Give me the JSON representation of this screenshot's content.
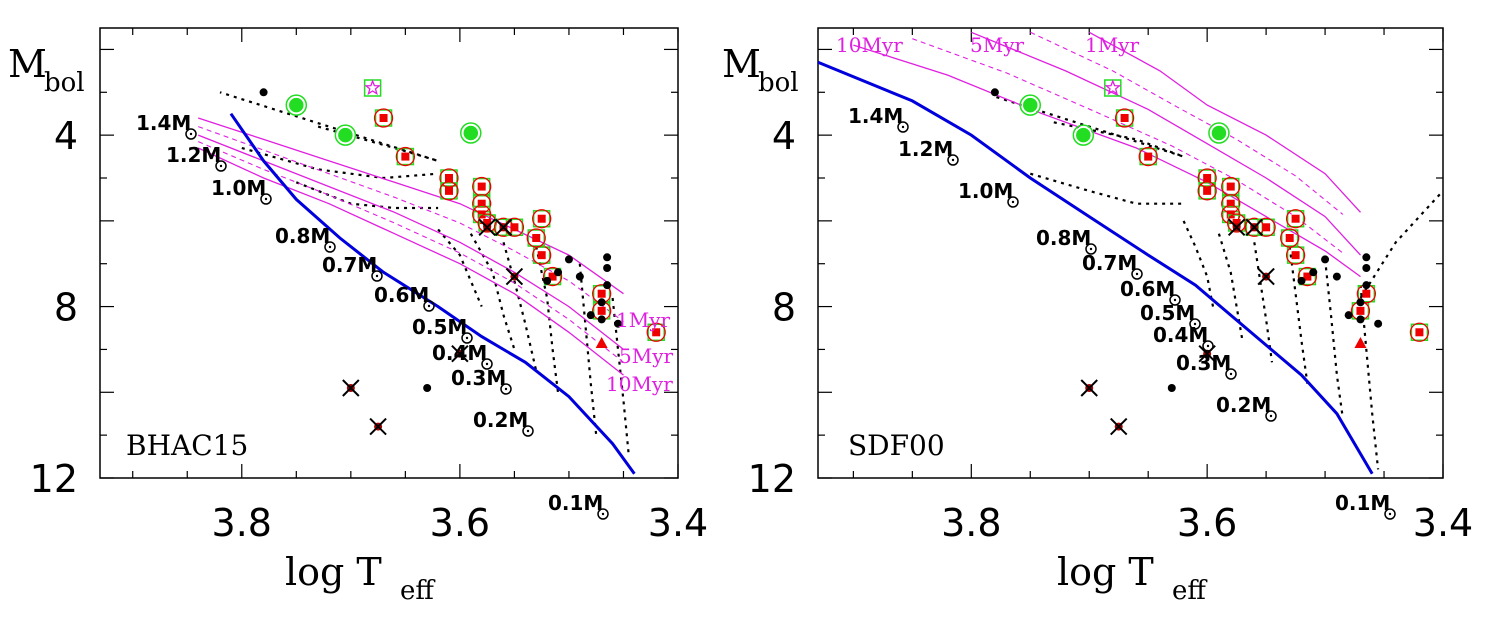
{
  "figure": {
    "panels": [
      {
        "model": "BHAC15",
        "ylabel_main": "M",
        "ylabel_sub": "bol",
        "xlabel_main": "log T",
        "xlabel_sub": "eff",
        "mass_labels": [
          "1.4M",
          "1.2M",
          "1.0M",
          "0.8M",
          "0.7M",
          "0.6M",
          "0.5M",
          "0.4M",
          "0.3M",
          "0.2M",
          "0.1M"
        ],
        "age_labels": [
          "1Myr",
          "5Myr",
          "10Myr"
        ]
      },
      {
        "model": "SDF00",
        "ylabel_main": "M",
        "ylabel_sub": "bol",
        "xlabel_main": "log T",
        "xlabel_sub": "eff",
        "mass_labels": [
          "1.4M",
          "1.2M",
          "1.0M",
          "0.8M",
          "0.7M",
          "0.6M",
          "0.5M",
          "0.4M",
          "0.3M",
          "0.2M",
          "0.1M"
        ],
        "age_labels": [
          "10Myr",
          "5Myr",
          "1Myr"
        ]
      }
    ]
  },
  "chart_data": [
    {
      "type": "scatter",
      "title": "",
      "model": "BHAC15",
      "xlabel": "log Teff",
      "ylabel": "Mbol",
      "xlim": [
        3.93,
        3.4
      ],
      "ylim": [
        12,
        1.5
      ],
      "xticks": [
        "3.8",
        "3.6",
        "3.4"
      ],
      "yticks": [
        "4",
        "8",
        "12"
      ],
      "colors": {
        "zams": "#0000dd",
        "isochrone": "#e020e0",
        "track": "#000000",
        "red": "#ee0000",
        "green": "#22dd22"
      },
      "zams": [
        [
          3.81,
          3.5
        ],
        [
          3.78,
          4.6
        ],
        [
          3.75,
          5.5
        ],
        [
          3.71,
          6.4
        ],
        [
          3.67,
          7.2
        ],
        [
          3.62,
          8.0
        ],
        [
          3.58,
          8.7
        ],
        [
          3.54,
          9.3
        ],
        [
          3.5,
          10.1
        ],
        [
          3.46,
          11.2
        ],
        [
          3.44,
          11.9
        ]
      ],
      "isochrones": [
        {
          "name": "1Myr",
          "points": [
            [
              3.84,
              3.6
            ],
            [
              3.78,
              4.1
            ],
            [
              3.72,
              4.6
            ],
            [
              3.66,
              5.1
            ],
            [
              3.6,
              5.6
            ],
            [
              3.55,
              6.2
            ],
            [
              3.5,
              6.8
            ],
            [
              3.45,
              7.7
            ]
          ]
        },
        {
          "name": "5Myr",
          "points": [
            [
              3.84,
              4.0
            ],
            [
              3.78,
              4.6
            ],
            [
              3.72,
              5.2
            ],
            [
              3.66,
              5.8
            ],
            [
              3.6,
              6.5
            ],
            [
              3.55,
              7.2
            ],
            [
              3.5,
              8.0
            ],
            [
              3.45,
              9.0
            ]
          ]
        },
        {
          "name": "10Myr",
          "points": [
            [
              3.84,
              4.3
            ],
            [
              3.78,
              5.0
            ],
            [
              3.72,
              5.6
            ],
            [
              3.66,
              6.3
            ],
            [
              3.6,
              7.0
            ],
            [
              3.55,
              7.7
            ],
            [
              3.5,
              8.6
            ],
            [
              3.45,
              9.6
            ]
          ]
        }
      ],
      "tracks": [
        {
          "points": [
            [
              3.73,
              3.8
            ],
            [
              3.66,
              4.3
            ],
            [
              3.62,
              4.6
            ],
            [
              3.82,
              3.0
            ]
          ]
        },
        {
          "points": [
            [
              3.8,
              4.3
            ],
            [
              3.73,
              4.8
            ],
            [
              3.67,
              5.0
            ],
            [
              3.62,
              4.9
            ]
          ]
        },
        {
          "points": [
            [
              3.75,
              5.1
            ],
            [
              3.7,
              5.6
            ],
            [
              3.66,
              5.7
            ],
            [
              3.62,
              5.7
            ]
          ]
        },
        {
          "points": [
            [
              3.62,
              6.2
            ],
            [
              3.6,
              6.8
            ],
            [
              3.59,
              7.4
            ],
            [
              3.58,
              8.0
            ]
          ]
        },
        {
          "points": [
            [
              3.59,
              6.3
            ],
            [
              3.57,
              7.2
            ],
            [
              3.56,
              8.2
            ],
            [
              3.55,
              9.0
            ]
          ]
        },
        {
          "points": [
            [
              3.56,
              6.5
            ],
            [
              3.55,
              7.4
            ],
            [
              3.54,
              8.4
            ],
            [
              3.53,
              9.5
            ]
          ]
        },
        {
          "points": [
            [
              3.53,
              6.6
            ],
            [
              3.52,
              7.8
            ],
            [
              3.515,
              9.0
            ],
            [
              3.51,
              10.0
            ]
          ]
        },
        {
          "points": [
            [
              3.49,
              7.0
            ],
            [
              3.485,
              8.4
            ],
            [
              3.48,
              9.8
            ],
            [
              3.475,
              11.0
            ]
          ]
        },
        {
          "points": [
            [
              3.46,
              7.8
            ],
            [
              3.455,
              9.0
            ],
            [
              3.45,
              10.2
            ],
            [
              3.445,
              11.5
            ]
          ]
        }
      ],
      "black_dots": [
        [
          3.78,
          3.0
        ],
        [
          3.465,
          6.85
        ],
        [
          3.465,
          7.1
        ],
        [
          3.465,
          7.5
        ],
        [
          3.47,
          7.9
        ],
        [
          3.47,
          8.3
        ],
        [
          3.455,
          8.4
        ],
        [
          3.5,
          6.9
        ],
        [
          3.51,
          7.2
        ],
        [
          3.52,
          7.4
        ],
        [
          3.49,
          7.3
        ],
        [
          3.48,
          8.2
        ],
        [
          3.63,
          9.9
        ]
      ],
      "red_squares": [
        [
          3.67,
          3.6
        ],
        [
          3.65,
          4.5
        ],
        [
          3.61,
          5.0
        ],
        [
          3.61,
          5.3
        ],
        [
          3.58,
          5.2
        ],
        [
          3.58,
          5.6
        ],
        [
          3.58,
          5.85
        ],
        [
          3.575,
          6.05
        ],
        [
          3.56,
          6.15
        ],
        [
          3.55,
          6.15
        ],
        [
          3.525,
          6.8
        ],
        [
          3.515,
          7.3
        ],
        [
          3.525,
          5.95
        ],
        [
          3.53,
          6.4
        ],
        [
          3.47,
          8.1
        ],
        [
          3.47,
          7.7
        ],
        [
          3.42,
          8.6
        ]
      ],
      "red_triangles": [
        [
          3.47,
          8.85
        ]
      ],
      "green_dots": [
        [
          3.75,
          3.3
        ],
        [
          3.705,
          4.0
        ],
        [
          3.59,
          3.95
        ]
      ],
      "crosses": [
        [
          3.7,
          9.9
        ],
        [
          3.675,
          10.8
        ],
        [
          3.6,
          9.1
        ],
        [
          3.55,
          7.3
        ],
        [
          3.56,
          6.15
        ],
        [
          3.575,
          6.15
        ]
      ],
      "stars": [
        [
          3.68,
          2.9
        ]
      ]
    },
    {
      "type": "scatter",
      "title": "",
      "model": "SDF00",
      "xlabel": "log Teff",
      "ylabel": "Mbol",
      "xlim": [
        3.93,
        3.4
      ],
      "ylim": [
        12,
        1.5
      ],
      "xticks": [
        "3.8",
        "3.6",
        "3.4"
      ],
      "yticks": [
        "4",
        "8",
        "12"
      ],
      "colors": {
        "zams": "#0000dd",
        "isochrone": "#e020e0",
        "track": "#000000",
        "red": "#ee0000",
        "green": "#22dd22"
      },
      "zams": [
        [
          3.93,
          2.3
        ],
        [
          3.85,
          3.2
        ],
        [
          3.8,
          4.0
        ],
        [
          3.75,
          5.0
        ],
        [
          3.7,
          5.9
        ],
        [
          3.65,
          6.8
        ],
        [
          3.61,
          7.5
        ],
        [
          3.58,
          8.2
        ],
        [
          3.55,
          8.9
        ],
        [
          3.52,
          9.6
        ],
        [
          3.49,
          10.5
        ],
        [
          3.46,
          11.9
        ]
      ],
      "isochrones": [
        {
          "name": "10Myr",
          "points": [
            [
              3.9,
              1.9
            ],
            [
              3.82,
              2.6
            ],
            [
              3.74,
              3.5
            ],
            [
              3.66,
              4.3
            ],
            [
              3.6,
              5.1
            ],
            [
              3.55,
              5.9
            ],
            [
              3.5,
              6.7
            ],
            [
              3.47,
              7.3
            ]
          ]
        },
        {
          "name": "5Myr",
          "points": [
            [
              3.8,
              1.6
            ],
            [
              3.72,
              2.5
            ],
            [
              3.65,
              3.4
            ],
            [
              3.6,
              4.2
            ],
            [
              3.55,
              5.0
            ],
            [
              3.5,
              5.9
            ],
            [
              3.47,
              6.8
            ]
          ]
        },
        {
          "name": "1Myr",
          "points": [
            [
              3.7,
              1.6
            ],
            [
              3.64,
              2.5
            ],
            [
              3.6,
              3.3
            ],
            [
              3.55,
              4.0
            ],
            [
              3.5,
              4.9
            ],
            [
              3.47,
              5.8
            ]
          ]
        }
      ],
      "tracks": [
        {
          "points": [
            [
              3.73,
              3.7
            ],
            [
              3.66,
              4.1
            ],
            [
              3.62,
              4.5
            ],
            [
              3.78,
              3.1
            ]
          ]
        },
        {
          "points": [
            [
              3.75,
              4.9
            ],
            [
              3.7,
              5.3
            ],
            [
              3.66,
              5.6
            ],
            [
              3.62,
              5.6
            ]
          ]
        },
        {
          "points": [
            [
              3.62,
              6.0
            ],
            [
              3.61,
              6.6
            ],
            [
              3.6,
              7.3
            ],
            [
              3.595,
              8.0
            ]
          ]
        },
        {
          "points": [
            [
              3.59,
              6.3
            ],
            [
              3.58,
              7.2
            ],
            [
              3.575,
              8.0
            ],
            [
              3.57,
              8.8
            ]
          ]
        },
        {
          "points": [
            [
              3.56,
              6.5
            ],
            [
              3.555,
              7.4
            ],
            [
              3.55,
              8.3
            ],
            [
              3.545,
              9.3
            ]
          ]
        },
        {
          "points": [
            [
              3.53,
              6.6
            ],
            [
              3.525,
              7.7
            ],
            [
              3.52,
              8.8
            ],
            [
              3.515,
              9.8
            ]
          ]
        },
        {
          "points": [
            [
              3.5,
              6.9
            ],
            [
              3.495,
              8.2
            ],
            [
              3.49,
              9.6
            ],
            [
              3.485,
              10.6
            ]
          ]
        },
        {
          "points": [
            [
              3.47,
              7.5
            ],
            [
              3.465,
              9.0
            ],
            [
              3.46,
              10.5
            ],
            [
              3.455,
              11.8
            ]
          ]
        },
        {
          "points": [
            [
              3.47,
              7.8
            ],
            [
              3.44,
              6.5
            ],
            [
              3.41,
              5.6
            ],
            [
              3.39,
              5.0
            ]
          ]
        }
      ],
      "black_dots": [
        [
          3.78,
          3.0
        ],
        [
          3.465,
          6.85
        ],
        [
          3.465,
          7.1
        ],
        [
          3.465,
          7.5
        ],
        [
          3.47,
          7.9
        ],
        [
          3.47,
          8.3
        ],
        [
          3.455,
          8.4
        ],
        [
          3.5,
          6.9
        ],
        [
          3.51,
          7.2
        ],
        [
          3.52,
          7.4
        ],
        [
          3.49,
          7.3
        ],
        [
          3.48,
          8.2
        ],
        [
          3.63,
          9.9
        ]
      ],
      "red_squares": [
        [
          3.67,
          3.6
        ],
        [
          3.65,
          4.5
        ],
        [
          3.6,
          5.0
        ],
        [
          3.6,
          5.3
        ],
        [
          3.58,
          5.2
        ],
        [
          3.58,
          5.6
        ],
        [
          3.58,
          5.85
        ],
        [
          3.575,
          6.05
        ],
        [
          3.56,
          6.15
        ],
        [
          3.55,
          6.15
        ],
        [
          3.525,
          6.8
        ],
        [
          3.515,
          7.3
        ],
        [
          3.525,
          5.95
        ],
        [
          3.53,
          6.4
        ],
        [
          3.47,
          8.1
        ],
        [
          3.465,
          7.7
        ],
        [
          3.42,
          8.6
        ]
      ],
      "red_triangles": [
        [
          3.47,
          8.85
        ]
      ],
      "green_dots": [
        [
          3.75,
          3.3
        ],
        [
          3.705,
          4.0
        ],
        [
          3.59,
          3.95
        ]
      ],
      "crosses": [
        [
          3.7,
          9.9
        ],
        [
          3.675,
          10.8
        ],
        [
          3.6,
          9.1
        ],
        [
          3.55,
          7.3
        ],
        [
          3.56,
          6.15
        ],
        [
          3.575,
          6.15
        ]
      ],
      "stars": [
        [
          3.68,
          2.9
        ]
      ]
    }
  ]
}
